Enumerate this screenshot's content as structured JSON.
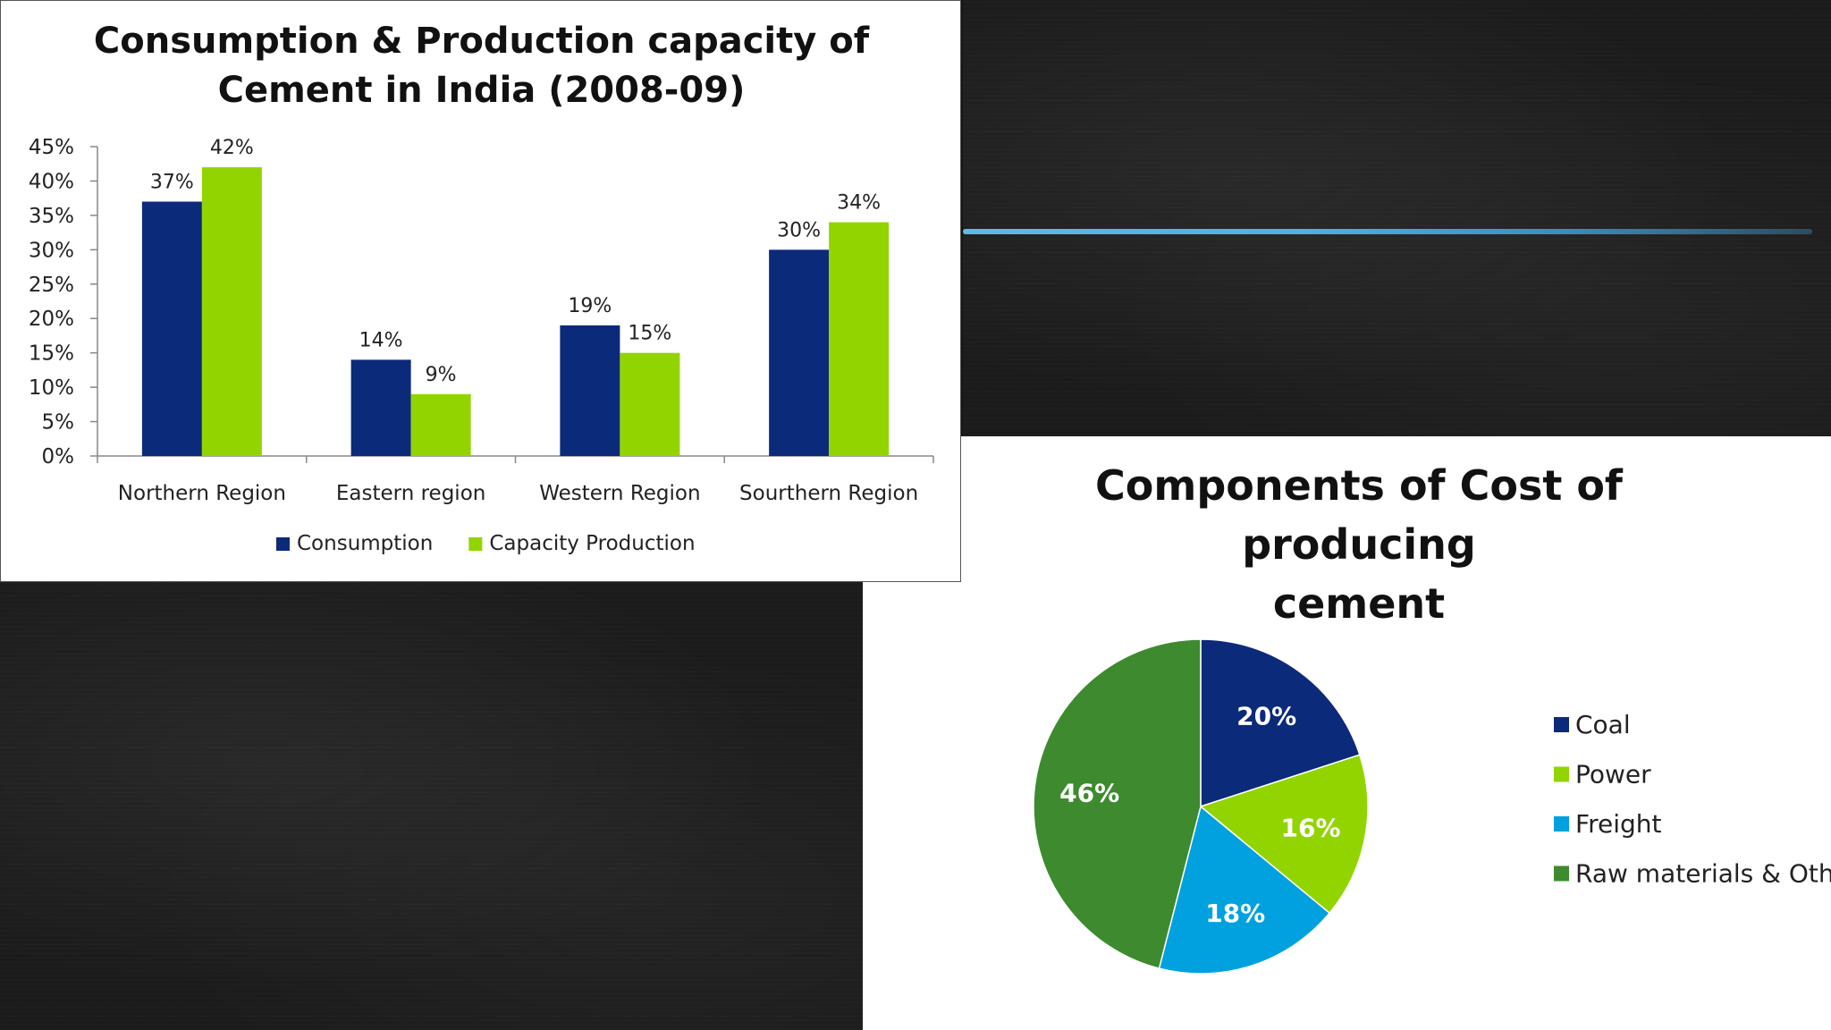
{
  "chart_data": [
    {
      "type": "bar",
      "title_line1": "Consumption & Production capacity of",
      "title_line2": "Cement in India (2008-09)",
      "categories": [
        "Northern Region",
        "Eastern region",
        "Western Region",
        "Sourthern Region"
      ],
      "series": [
        {
          "name": "Consumption",
          "values": [
            37,
            14,
            19,
            30
          ],
          "labels": [
            "37%",
            "14%",
            "19%",
            "30%"
          ],
          "color": "#0b2a7a"
        },
        {
          "name": "Capacity Production",
          "values": [
            42,
            9,
            15,
            34
          ],
          "labels": [
            "42%",
            "9%",
            "15%",
            "34%"
          ],
          "color": "#92d400"
        }
      ],
      "ylim": [
        0,
        45
      ],
      "yticks": [
        0,
        5,
        10,
        15,
        20,
        25,
        30,
        35,
        40,
        45
      ],
      "ytick_labels": [
        "0%",
        "5%",
        "10%",
        "15%",
        "20%",
        "25%",
        "30%",
        "35%",
        "40%",
        "45%"
      ],
      "legend": "bottom",
      "grid": false
    },
    {
      "type": "pie",
      "title_line1": "Components of Cost of producing",
      "title_line2": "cement",
      "slices": [
        {
          "name": "Coal",
          "value": 20,
          "label": "20%",
          "color": "#0b2a7a"
        },
        {
          "name": "Power",
          "value": 16,
          "label": "16%",
          "color": "#92d400"
        },
        {
          "name": "Freight",
          "value": 18,
          "label": "18%",
          "color": "#00a1de"
        },
        {
          "name": "Raw materials & Other",
          "value": 46,
          "label": "46%",
          "color": "#3d8b2e"
        }
      ],
      "legend": "right"
    }
  ]
}
